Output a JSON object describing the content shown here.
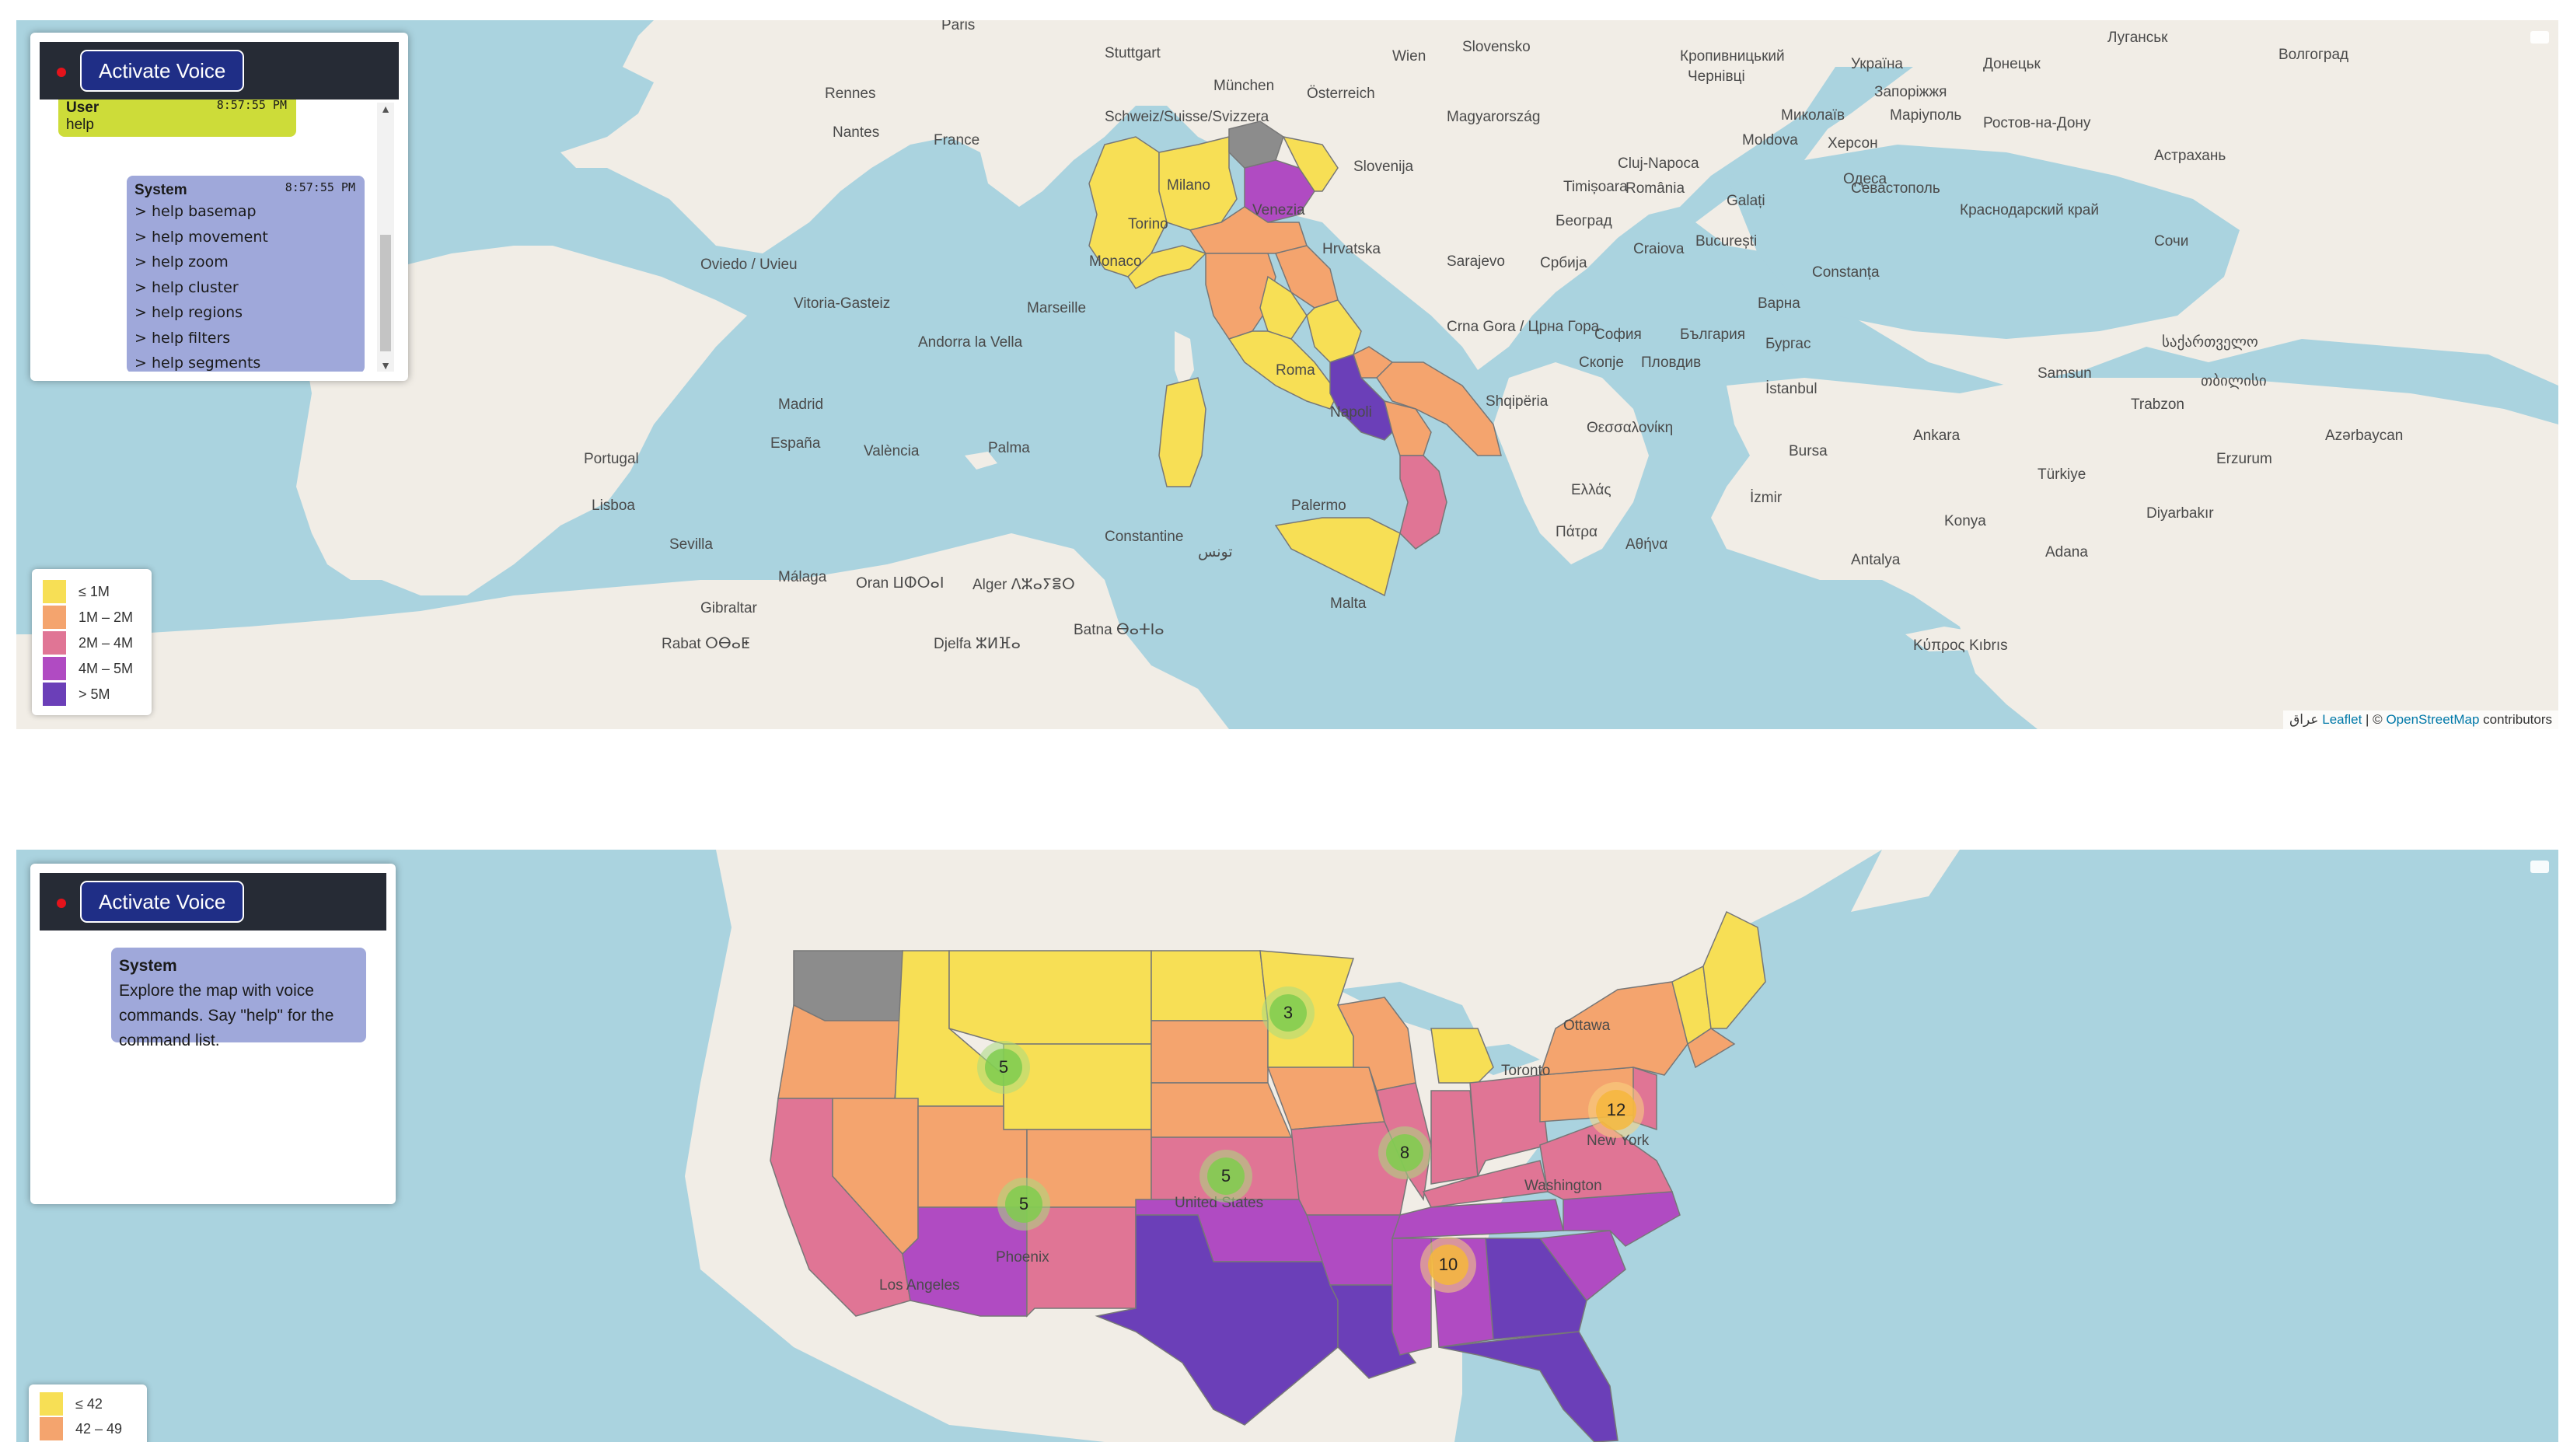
{
  "colors": {
    "water": "#aad3df",
    "land": "#f1ede6",
    "lvl1": "#f7df55",
    "lvl2": "#f4a46e",
    "lvl3": "#e07595",
    "lvl4": "#b04bc2",
    "lvl5": "#6b3fb8",
    "nodata": "#8c8c8c",
    "cluster_green": "#7fcc4e",
    "cluster_orange": "#f6b73c",
    "user_bubble": "#cddc39",
    "system_bubble": "#9fa8da",
    "button": "#1f2e86"
  },
  "map_europe": {
    "chat": {
      "voice_button": "Activate Voice",
      "user_message": {
        "sender": "User",
        "time": "8:57:55 PM",
        "text": "help"
      },
      "system_message": {
        "sender": "System",
        "time": "8:57:55 PM",
        "commands": [
          "> help basemap",
          "> help movement",
          "> help zoom",
          "> help cluster",
          "> help regions",
          "> help filters",
          "> help segments"
        ]
      }
    },
    "legend": [
      {
        "label": "≤ 1M",
        "color": "#f7df55"
      },
      {
        "label": "1M – 2M",
        "color": "#f4a46e"
      },
      {
        "label": "2M – 4M",
        "color": "#e07595"
      },
      {
        "label": "4M – 5M",
        "color": "#b04bc2"
      },
      {
        "label": "> 5M",
        "color": "#6b3fb8"
      }
    ],
    "places": {
      "paris": "Paris",
      "munchen": "München",
      "wien": "Wien",
      "stuttgart": "Stuttgart",
      "rennes": "Rennes",
      "nantes": "Nantes",
      "france": "France",
      "schweiz": "Schweiz/Suisse/Svizzera",
      "osterreich": "Österreich",
      "magyarorszag": "Magyarország",
      "slovenija": "Slovenija",
      "hrvatska": "Hrvatska",
      "marseille": "Marseille",
      "oviedo": "Oviedo / Uvieu",
      "vitoria": "Vitoria-Gasteiz",
      "andorra": "Andorra la Vella",
      "madrid": "Madrid",
      "espana": "España",
      "valencia": "València",
      "palma": "Palma",
      "portugal": "Portugal",
      "lisboa": "Lisboa",
      "sevilla": "Sevilla",
      "malaga": "Málaga",
      "gibraltar": "Gibraltar",
      "rabat": "Rabat ⵔⴱⴰⵟ",
      "oran": "Oran ⵡⵀⵔⴰⵏ",
      "alger": "Alger ⴷⵣⴰⵢⴻⵔ",
      "constantine": "Constantine",
      "tunis": "تونس",
      "batna": "Batna ⴱⴰⵜⵏⴰ",
      "djelfa": "Djelfa ⵣⵍⴼⴰ",
      "roma": "Roma",
      "napoli": "Napoli",
      "palermo": "Palermo",
      "venezia": "Venezia",
      "milano": "Milano",
      "torino": "Torino",
      "monaco": "Monaco",
      "malta": "Malta",
      "sarajevo": "Sarajevo",
      "srbija": "Србија",
      "beograd": "Београд",
      "timisoara": "Timișoara",
      "romania": "România",
      "bucuresti": "București",
      "craiova": "Craiova",
      "cluj": "Cluj-Napoca",
      "moldova": "Moldova",
      "sofia": "София",
      "bulgaria": "България",
      "crna_gora": "Crna Gora / Црна Гора",
      "shqiperia": "Shqipëria",
      "skopje": "Скопје",
      "plovdiv": "Пловдив",
      "varna": "Варна",
      "burgas": "Бургас",
      "istanbul": "İstanbul",
      "ellada": "Ελλάς",
      "athina": "Αθήνα",
      "patra": "Πάτρα",
      "thessaloniki": "Θεσσαλονίκη",
      "turkiye": "Türkiye",
      "ankara": "Ankara",
      "izmir": "İzmir",
      "bursa": "Bursa",
      "antalya": "Antalya",
      "adana": "Adana",
      "konya": "Konya",
      "kypros": "Κύπρος Kıbrıs",
      "constanta": "Constanța",
      "odesa": "Одеса",
      "ukraina": "Україна",
      "kherson": "Херсон",
      "sevastopol": "Севастополь",
      "krasnodar": "Краснодарский край",
      "sochi": "Сочи",
      "samsun": "Samsun",
      "trabzon": "Trabzon",
      "sakartvelo": "საქართველო",
      "tbilisi": "თბილისი",
      "azerbaycan": "Azərbaycan",
      "erzurum": "Erzurum",
      "diyarbakir": "Diyarbakır",
      "volgograd": "Волгоград",
      "astrakhan": "Астрахань",
      "slovensko": "Slovensko",
      "krakow": "Кропивницький",
      "chernivtsi": "Чернівці",
      "galati": "Galați",
      "mykolaiv": "Миколаїв",
      "mariupol": "Маріуполь",
      "rostov": "Ростов-на-Дону",
      "donetsk": "Донецьк",
      "luhansk": "Луганськ",
      "zaporizhzhia": "Запоріжжя"
    },
    "attribution": {
      "leaflet": "Leaflet",
      "sep": " | © ",
      "osm": "OpenStreetMap",
      "tail": " contributors",
      "prefix": "عراق "
    }
  },
  "map_usa": {
    "chat": {
      "voice_button": "Activate Voice",
      "system_message": {
        "sender": "System",
        "text": "Explore the map with voice commands. Say \"help\" for the command list."
      }
    },
    "legend": [
      {
        "label": "≤ 42",
        "color": "#f7df55"
      },
      {
        "label": "42 – 49",
        "color": "#f4a46e"
      }
    ],
    "clusters": [
      "5",
      "3",
      "8",
      "5",
      "5",
      "12",
      "10"
    ],
    "places": {
      "ottawa": "Ottawa",
      "toronto": "Toronto",
      "new_york": "New York",
      "washington": "Washington",
      "united_states": "United States",
      "phoenix": "Phoenix",
      "los_angeles": "Los Angeles"
    }
  }
}
